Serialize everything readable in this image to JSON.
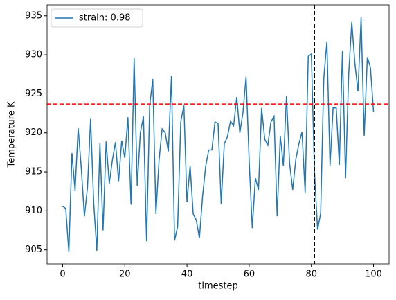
{
  "chart_data": {
    "type": "line",
    "xlabel": "timestep",
    "ylabel": "Temperature K",
    "x": [
      0,
      1,
      2,
      3,
      4,
      5,
      6,
      7,
      8,
      9,
      10,
      11,
      12,
      13,
      14,
      15,
      16,
      17,
      18,
      19,
      20,
      21,
      22,
      23,
      24,
      25,
      26,
      27,
      28,
      29,
      30,
      31,
      32,
      33,
      34,
      35,
      36,
      37,
      38,
      39,
      40,
      41,
      42,
      43,
      44,
      45,
      46,
      47,
      48,
      49,
      50,
      51,
      52,
      53,
      54,
      55,
      56,
      57,
      58,
      59,
      60,
      61,
      62,
      63,
      64,
      65,
      66,
      67,
      68,
      69,
      70,
      71,
      72,
      73,
      74,
      75,
      76,
      77,
      78,
      79,
      80,
      81,
      82,
      83,
      84,
      85,
      86,
      87,
      88,
      89,
      90,
      91,
      92,
      93,
      94,
      95,
      96,
      97,
      98,
      99,
      100
    ],
    "series": [
      {
        "name": "strain: 0.98",
        "color": "#1f77b4",
        "values": [
          910.6,
          910.3,
          904.7,
          917.4,
          912.6,
          920.6,
          915.5,
          909.3,
          913.0,
          921.8,
          911.0,
          904.9,
          918.7,
          907.5,
          918.9,
          913.5,
          916.5,
          918.8,
          913.8,
          919.0,
          916.8,
          922.0,
          910.8,
          929.6,
          913.2,
          920.0,
          922.1,
          906.1,
          923.5,
          926.9,
          909.6,
          916.4,
          920.5,
          920.0,
          917.6,
          927.3,
          906.2,
          908.0,
          921.4,
          923.5,
          911.1,
          915.8,
          909.6,
          908.8,
          906.5,
          911.8,
          915.7,
          917.8,
          917.8,
          921.4,
          921.2,
          910.9,
          918.6,
          919.5,
          921.5,
          920.9,
          924.6,
          920.0,
          922.6,
          927.2,
          916.4,
          907.8,
          914.2,
          912.7,
          923.2,
          919.2,
          918.4,
          921.4,
          922.1,
          909.3,
          919.6,
          915.8,
          924.7,
          916.1,
          912.7,
          916.6,
          918.6,
          920.1,
          912.3,
          929.8,
          930.1,
          915.0,
          907.6,
          909.7,
          927.0,
          931.7,
          915.8,
          923.2,
          923.2,
          915.9,
          930.5,
          914.2,
          927.5,
          934.2,
          928.9,
          925.3,
          934.8,
          919.6,
          929.7,
          928.4,
          922.7
        ]
      }
    ],
    "hline": {
      "value": 923.7,
      "color": "#ff0000"
    },
    "vline": {
      "value": 81,
      "color": "#000000"
    },
    "xlim": [
      -5,
      105
    ],
    "ylim": [
      903.2,
      936.4
    ],
    "xticks": [
      0,
      20,
      40,
      60,
      80,
      100
    ],
    "yticks": [
      905,
      910,
      915,
      920,
      925,
      930,
      935
    ],
    "legend": "upper left",
    "grid": false
  }
}
